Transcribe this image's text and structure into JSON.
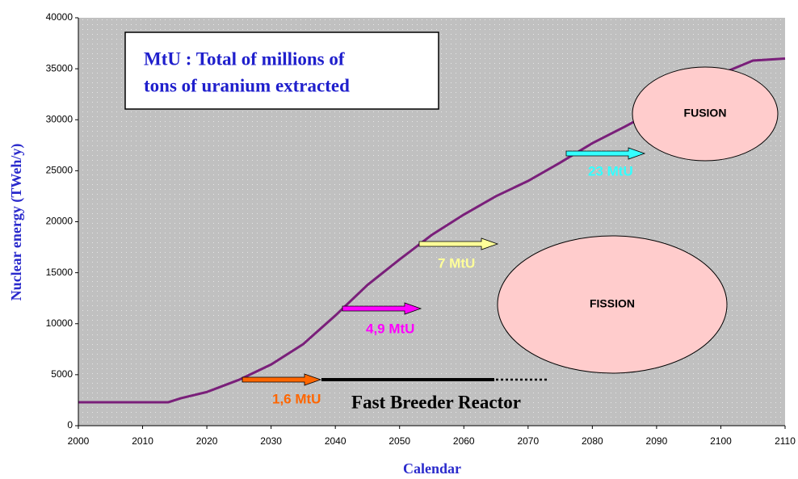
{
  "chart_data": {
    "type": "line",
    "x_label": "Calendar",
    "y_label": "Nuclear energy (TWeh/y)",
    "x": [
      2000,
      2014,
      2016,
      2020,
      2025,
      2030,
      2035,
      2040,
      2045,
      2050,
      2055,
      2060,
      2065,
      2070,
      2075,
      2080,
      2085,
      2090,
      2095,
      2100,
      2105,
      2110
    ],
    "series": [
      {
        "color": "#7a1f7a",
        "values": [
          2300,
          2300,
          2700,
          3300,
          4500,
          6000,
          8000,
          10800,
          13800,
          16300,
          18700,
          20700,
          22500,
          24000,
          25800,
          27700,
          29300,
          31000,
          32800,
          34500,
          35800,
          36000
        ]
      }
    ],
    "xlim": [
      2000,
      2110
    ],
    "xticks": [
      2000,
      2010,
      2020,
      2030,
      2040,
      2050,
      2060,
      2070,
      2080,
      2090,
      2100,
      2110
    ],
    "ylim": [
      0,
      40000
    ],
    "yticks": [
      0,
      5000,
      10000,
      15000,
      20000,
      25000,
      30000,
      35000,
      40000
    ],
    "grid": false,
    "annotations": {
      "box": [
        "MtU : Total of millions of",
        "tons of uranium extracted"
      ],
      "fusion": "FUSION",
      "fission": "FISSION",
      "arrows": [
        {
          "label": "1,6 MtU",
          "color": "#ff6600"
        },
        {
          "label": "4,9 MtU",
          "color": "#ff00ff"
        },
        {
          "label": "7 MtU",
          "color": "#ffff99"
        },
        {
          "label": "23 MtU",
          "color": "#33ffff"
        }
      ],
      "fbr": "Fast Breeder Reactor"
    }
  }
}
